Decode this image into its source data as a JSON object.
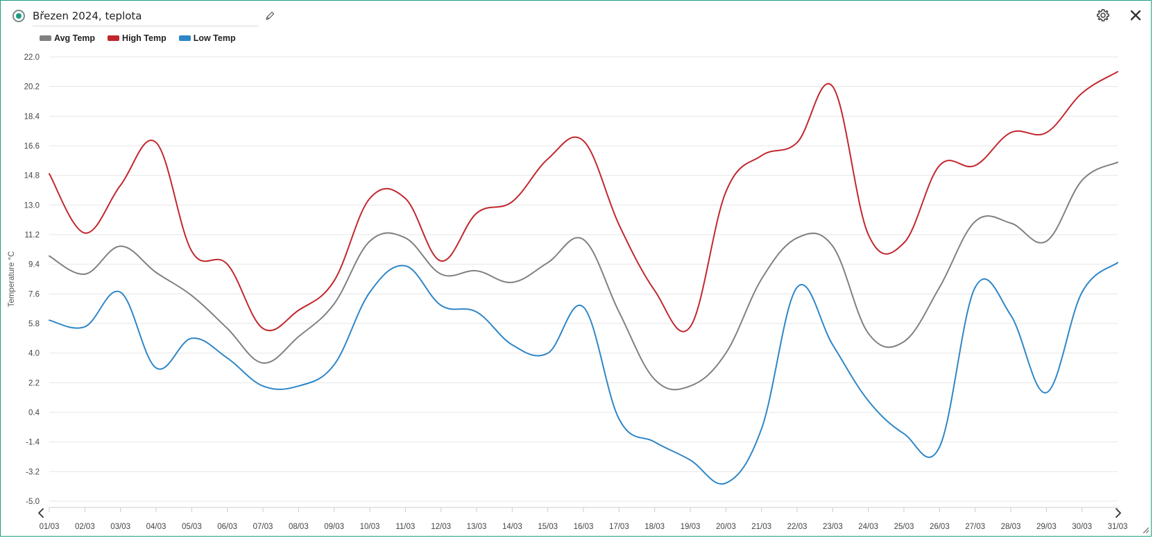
{
  "header": {
    "title": "Březen 2024, teplota"
  },
  "icons": {
    "status": "status-dot-icon",
    "edit": "pencil-icon",
    "settings": "gear-icon",
    "close": "close-icon",
    "prev": "chevron-left-icon",
    "next": "chevron-right-icon",
    "resize": "resize-handle-icon"
  },
  "colors": {
    "accent": "#1a9e7f",
    "avg": "#808080",
    "high": "#c1272d",
    "low": "#2e86c8",
    "grid": "#e6e6e6"
  },
  "chart_data": {
    "type": "line",
    "ylabel": "Temperature °C",
    "xlabel": "",
    "ylim": [
      -5.0,
      22.0
    ],
    "yticks": [
      "22.0",
      "20.2",
      "18.4",
      "16.6",
      "14.8",
      "13.0",
      "11.2",
      "9.4",
      "7.6",
      "5.8",
      "4.0",
      "2.2",
      "0.4",
      "-1.4",
      "-3.2",
      "-5.0"
    ],
    "grid": true,
    "legend_position": "top-left",
    "categories": [
      "01/03",
      "02/03",
      "03/03",
      "04/03",
      "05/03",
      "06/03",
      "07/03",
      "08/03",
      "09/03",
      "10/03",
      "11/03",
      "12/03",
      "13/03",
      "14/03",
      "15/03",
      "16/03",
      "17/03",
      "18/03",
      "19/03",
      "20/03",
      "21/03",
      "22/03",
      "23/03",
      "24/03",
      "25/03",
      "26/03",
      "27/03",
      "28/03",
      "29/03",
      "30/03",
      "31/03"
    ],
    "series": [
      {
        "name": "Avg Temp",
        "color": "#808080",
        "values": [
          9.9,
          8.8,
          10.5,
          8.9,
          7.5,
          5.5,
          3.4,
          5.0,
          7.0,
          10.8,
          11.0,
          8.8,
          9.0,
          8.3,
          9.5,
          10.9,
          6.5,
          2.4,
          2.0,
          4.0,
          8.5,
          11.0,
          10.5,
          5.2,
          4.7,
          8.0,
          12.0,
          11.9,
          10.8,
          14.5,
          15.6
        ]
      },
      {
        "name": "High Temp",
        "color": "#c1272d",
        "values": [
          14.9,
          11.3,
          14.2,
          16.8,
          10.2,
          9.4,
          5.5,
          6.6,
          8.4,
          13.4,
          13.4,
          9.6,
          12.5,
          13.2,
          15.8,
          16.9,
          11.8,
          7.8,
          5.6,
          13.8,
          16.0,
          16.8,
          20.2,
          11.2,
          10.7,
          15.4,
          15.4,
          17.4,
          17.4,
          19.8,
          21.1
        ]
      },
      {
        "name": "Low Temp",
        "color": "#2e86c8",
        "values": [
          6.0,
          5.6,
          7.7,
          3.1,
          4.9,
          3.7,
          2.0,
          2.0,
          3.3,
          7.7,
          9.3,
          6.9,
          6.5,
          4.5,
          4.0,
          6.8,
          0.0,
          -1.4,
          -2.5,
          -3.9,
          -0.6,
          8.0,
          4.5,
          1.1,
          -0.9,
          -1.7,
          8.0,
          6.3,
          1.6,
          7.7,
          9.5
        ]
      }
    ]
  }
}
